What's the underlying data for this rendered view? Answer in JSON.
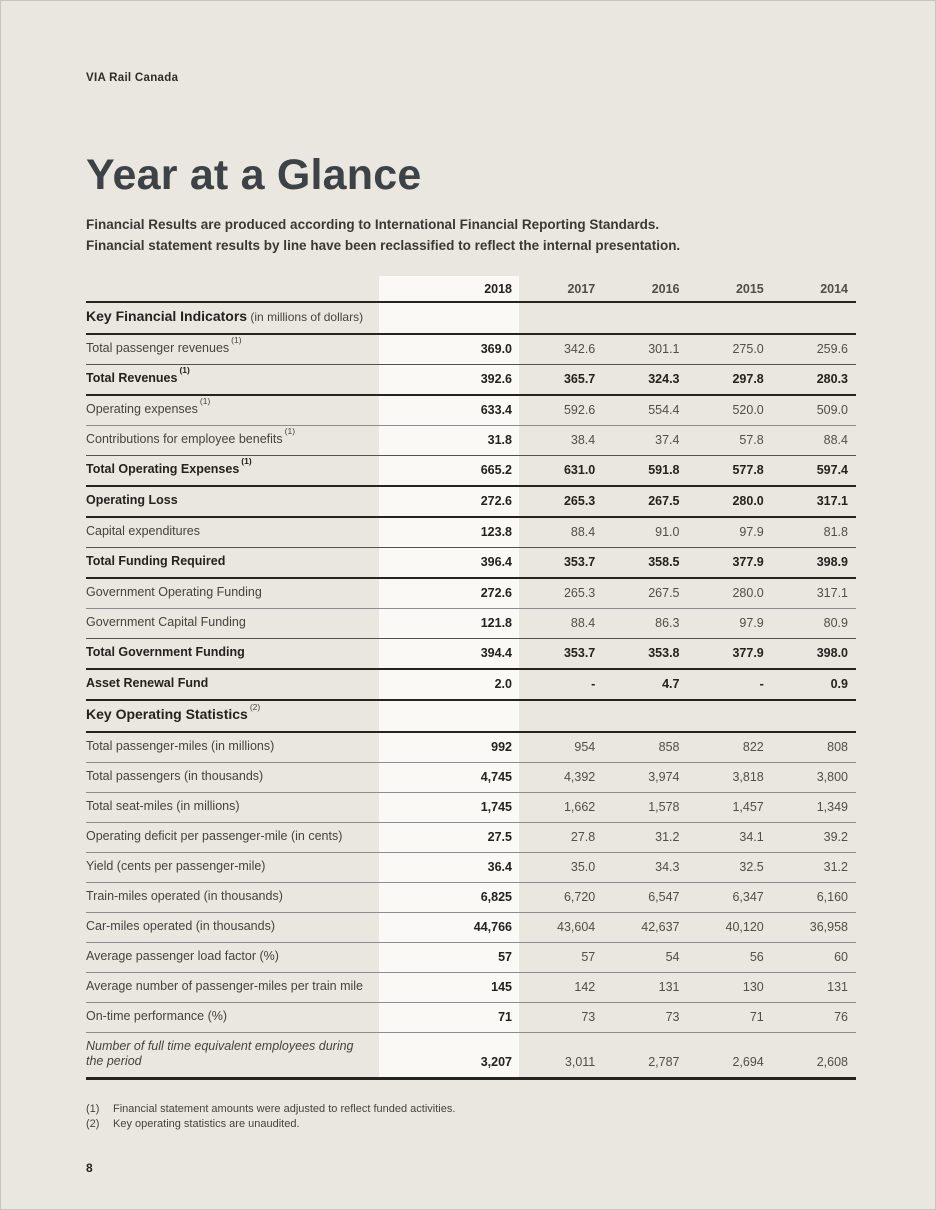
{
  "colors": {
    "page_bg": "#eae7e0",
    "highlight": "#faf9f5",
    "line_strong": "#262420"
  },
  "page": {
    "brand": "VIA Rail Canada",
    "title": "Year at a Glance",
    "intro_line1": "Financial Results are produced according to International Financial Reporting Standards.",
    "intro_line2": "Financial statement results by line have been reclassified to reflect the internal presentation.",
    "footnotes": [
      {
        "num": "(1)",
        "text": "Financial statement amounts were adjusted to reflect funded activities."
      },
      {
        "num": "(2)",
        "text": "Key operating statistics are unaudited."
      }
    ],
    "page_number": "8"
  },
  "table": {
    "years": [
      "2018",
      "2017",
      "2016",
      "2015",
      "2014"
    ],
    "sections": [
      {
        "title": "Key Financial Indicators",
        "note": "(in millions of dollars)",
        "sup": null,
        "rows": [
          {
            "label": "Total passenger revenues",
            "sup": "(1)",
            "bold": false,
            "italic": false,
            "values": [
              "369.0",
              "342.6",
              "301.1",
              "275.0",
              "259.6"
            ]
          },
          {
            "label": "Total Revenues",
            "sup": "(1)",
            "bold": true,
            "italic": false,
            "values": [
              "392.6",
              "365.7",
              "324.3",
              "297.8",
              "280.3"
            ]
          },
          {
            "label": "Operating expenses",
            "sup": "(1)",
            "bold": false,
            "italic": false,
            "values": [
              "633.4",
              "592.6",
              "554.4",
              "520.0",
              "509.0"
            ]
          },
          {
            "label": "Contributions for employee benefits",
            "sup": "(1)",
            "bold": false,
            "italic": false,
            "values": [
              "31.8",
              "38.4",
              "37.4",
              "57.8",
              "88.4"
            ]
          },
          {
            "label": "Total Operating Expenses",
            "sup": "(1)",
            "bold": true,
            "italic": false,
            "values": [
              "665.2",
              "631.0",
              "591.8",
              "577.8",
              "597.4"
            ]
          },
          {
            "label": "Operating Loss",
            "sup": null,
            "bold": true,
            "italic": false,
            "values": [
              "272.6",
              "265.3",
              "267.5",
              "280.0",
              "317.1"
            ]
          },
          {
            "label": "Capital expenditures",
            "sup": null,
            "bold": false,
            "italic": false,
            "values": [
              "123.8",
              "88.4",
              "91.0",
              "97.9",
              "81.8"
            ]
          },
          {
            "label": "Total Funding Required",
            "sup": null,
            "bold": true,
            "italic": false,
            "values": [
              "396.4",
              "353.7",
              "358.5",
              "377.9",
              "398.9"
            ]
          },
          {
            "label": "Government Operating Funding",
            "sup": null,
            "bold": false,
            "italic": false,
            "values": [
              "272.6",
              "265.3",
              "267.5",
              "280.0",
              "317.1"
            ]
          },
          {
            "label": "Government Capital Funding",
            "sup": null,
            "bold": false,
            "italic": false,
            "values": [
              "121.8",
              "88.4",
              "86.3",
              "97.9",
              "80.9"
            ]
          },
          {
            "label": "Total Government Funding",
            "sup": null,
            "bold": true,
            "italic": false,
            "values": [
              "394.4",
              "353.7",
              "353.8",
              "377.9",
              "398.0"
            ]
          },
          {
            "label": "Asset Renewal Fund",
            "sup": null,
            "bold": true,
            "italic": false,
            "values": [
              "2.0",
              "-",
              "4.7",
              "-",
              "0.9"
            ]
          }
        ]
      },
      {
        "title": "Key Operating Statistics",
        "note": null,
        "sup": "(2)",
        "rows": [
          {
            "label": "Total passenger-miles (in millions)",
            "sup": null,
            "bold": false,
            "italic": false,
            "values": [
              "992",
              "954",
              "858",
              "822",
              "808"
            ]
          },
          {
            "label": "Total passengers (in thousands)",
            "sup": null,
            "bold": false,
            "italic": false,
            "values": [
              "4,745",
              "4,392",
              "3,974",
              "3,818",
              "3,800"
            ]
          },
          {
            "label": "Total seat-miles (in millions)",
            "sup": null,
            "bold": false,
            "italic": false,
            "values": [
              "1,745",
              "1,662",
              "1,578",
              "1,457",
              "1,349"
            ]
          },
          {
            "label": "Operating deficit per passenger-mile (in cents)",
            "sup": null,
            "bold": false,
            "italic": false,
            "values": [
              "27.5",
              "27.8",
              "31.2",
              "34.1",
              "39.2"
            ]
          },
          {
            "label": "Yield (cents per passenger-mile)",
            "sup": null,
            "bold": false,
            "italic": false,
            "values": [
              "36.4",
              "35.0",
              "34.3",
              "32.5",
              "31.2"
            ]
          },
          {
            "label": "Train-miles operated (in thousands)",
            "sup": null,
            "bold": false,
            "italic": false,
            "values": [
              "6,825",
              "6,720",
              "6,547",
              "6,347",
              "6,160"
            ]
          },
          {
            "label": "Car-miles operated (in thousands)",
            "sup": null,
            "bold": false,
            "italic": false,
            "values": [
              "44,766",
              "43,604",
              "42,637",
              "40,120",
              "36,958"
            ]
          },
          {
            "label": "Average passenger load factor (%)",
            "sup": null,
            "bold": false,
            "italic": false,
            "values": [
              "57",
              "57",
              "54",
              "56",
              "60"
            ]
          },
          {
            "label": "Average number of passenger-miles per train mile",
            "sup": null,
            "bold": false,
            "italic": false,
            "values": [
              "145",
              "142",
              "131",
              "130",
              "131"
            ]
          },
          {
            "label": "On-time performance (%)",
            "sup": null,
            "bold": false,
            "italic": false,
            "values": [
              "71",
              "73",
              "73",
              "71",
              "76"
            ]
          },
          {
            "label": "Number of full time equivalent employees during the period",
            "sup": null,
            "bold": false,
            "italic": true,
            "values": [
              "3,207",
              "3,011",
              "2,787",
              "2,694",
              "2,608"
            ]
          }
        ]
      }
    ]
  }
}
